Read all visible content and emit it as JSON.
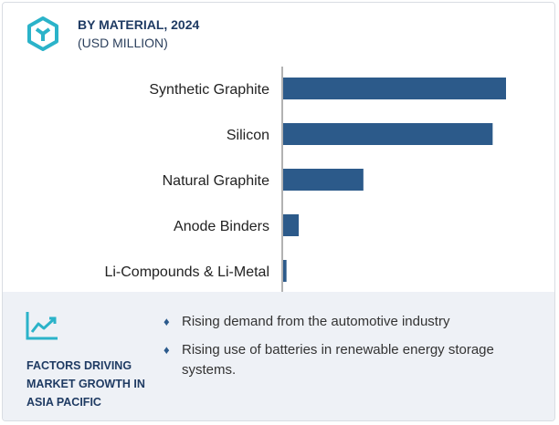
{
  "header": {
    "title": "BY MATERIAL, 2024",
    "subtitle": "(USD MILLION)",
    "icon": "hexagon-cube-icon"
  },
  "chart_data": {
    "type": "bar",
    "orientation": "horizontal",
    "categories": [
      "Synthetic Graphite",
      "Silicon",
      "Natural Graphite",
      "Anode Binders",
      "Li-Compounds & Li-Metal"
    ],
    "values": [
      100,
      94,
      36,
      7,
      1.5
    ],
    "title": "BY MATERIAL, 2024",
    "xlabel": "",
    "ylabel": "",
    "xlim": [
      0,
      100
    ],
    "grid": false,
    "bar_color": "#2c5a8a"
  },
  "footer": {
    "icon": "trend-line-icon",
    "heading": "FACTORS DRIVING MARKET GROWTH IN ASIA PACIFIC",
    "bullets": [
      "Rising demand from the automotive industry",
      "Rising use of batteries in renewable energy storage systems."
    ]
  },
  "colors": {
    "accent": "#2bb3c9",
    "bar": "#2c5a8a",
    "heading": "#1f3b63",
    "panel": "#eef1f6"
  }
}
